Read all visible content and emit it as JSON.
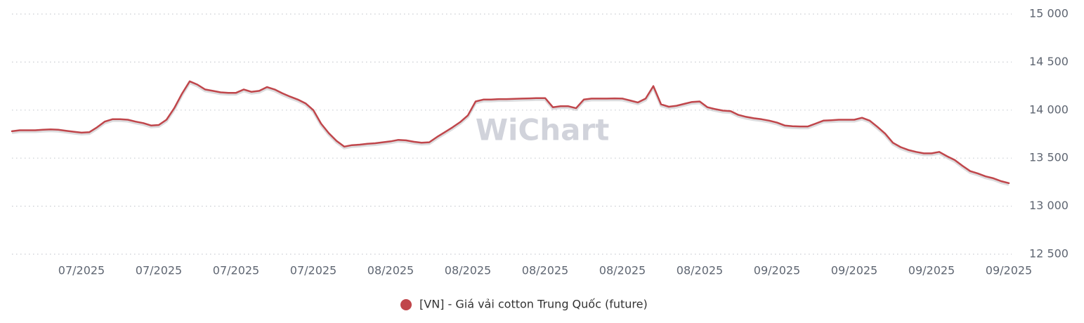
{
  "chart_data": {
    "type": "line",
    "watermark": "WiChart",
    "categories": [
      null,
      null,
      null,
      null,
      null,
      null,
      null,
      null,
      null,
      "07/2025",
      null,
      null,
      null,
      null,
      null,
      null,
      null,
      null,
      null,
      "07/2025",
      null,
      null,
      null,
      null,
      null,
      null,
      null,
      null,
      null,
      "07/2025",
      null,
      null,
      null,
      null,
      null,
      null,
      null,
      null,
      null,
      "07/2025",
      null,
      null,
      null,
      null,
      null,
      null,
      null,
      null,
      null,
      "08/2025",
      null,
      null,
      null,
      null,
      null,
      null,
      null,
      null,
      null,
      "08/2025",
      null,
      null,
      null,
      null,
      null,
      null,
      null,
      null,
      null,
      "08/2025",
      null,
      null,
      null,
      null,
      null,
      null,
      null,
      null,
      null,
      "08/2025",
      null,
      null,
      null,
      null,
      null,
      null,
      null,
      null,
      null,
      "08/2025",
      null,
      null,
      null,
      null,
      null,
      null,
      null,
      null,
      null,
      "09/2025",
      null,
      null,
      null,
      null,
      null,
      null,
      null,
      null,
      null,
      "09/2025",
      null,
      null,
      null,
      null,
      null,
      null,
      null,
      null,
      null,
      "09/2025",
      null,
      null,
      null,
      null,
      null,
      null,
      null,
      null,
      null,
      "09/2025"
    ],
    "series": [
      {
        "name": "[VN] - Giá vải cotton Trung Quốc (future)",
        "color": "#c0464b",
        "values": [
          13780,
          13790,
          13790,
          13790,
          13795,
          13800,
          13795,
          13785,
          13775,
          13765,
          13770,
          13820,
          13880,
          13905,
          13905,
          13900,
          13880,
          13865,
          13840,
          13845,
          13900,
          14020,
          14170,
          14300,
          14265,
          14215,
          14200,
          14185,
          14180,
          14180,
          14215,
          14190,
          14200,
          14240,
          14215,
          14175,
          14140,
          14110,
          14070,
          14000,
          13860,
          13760,
          13680,
          13620,
          13635,
          13640,
          13650,
          13655,
          13665,
          13675,
          13690,
          13685,
          13670,
          13660,
          13665,
          13720,
          13770,
          13820,
          13875,
          13945,
          14090,
          14110,
          14110,
          14115,
          14115,
          14118,
          14120,
          14122,
          14125,
          14125,
          14030,
          14040,
          14040,
          14020,
          14110,
          14120,
          14120,
          14120,
          14122,
          14120,
          14100,
          14080,
          14120,
          14250,
          14060,
          14035,
          14045,
          14065,
          14085,
          14090,
          14030,
          14010,
          13995,
          13990,
          13950,
          13930,
          13915,
          13905,
          13890,
          13870,
          13840,
          13832,
          13830,
          13830,
          13860,
          13890,
          13895,
          13900,
          13900,
          13900,
          13920,
          13890,
          13825,
          13755,
          13660,
          13615,
          13585,
          13565,
          13550,
          13550,
          13565,
          13520,
          13480,
          13420,
          13365,
          13340,
          13310,
          13290,
          13260,
          13240
        ]
      }
    ],
    "ylim": [
      12500,
      15000
    ],
    "yticks": [
      {
        "value": 12500,
        "label": "12 500"
      },
      {
        "value": 13000,
        "label": "13 000"
      },
      {
        "value": 13500,
        "label": "13 500"
      },
      {
        "value": 14000,
        "label": "14 000"
      },
      {
        "value": 14500,
        "label": "14 500"
      },
      {
        "value": 15000,
        "label": "15 000"
      }
    ],
    "grid": true,
    "legend": "bottom"
  }
}
